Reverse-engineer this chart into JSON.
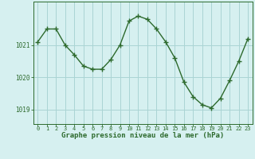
{
  "hours": [
    0,
    1,
    2,
    3,
    4,
    5,
    6,
    7,
    8,
    9,
    10,
    11,
    12,
    13,
    14,
    15,
    16,
    17,
    18,
    19,
    20,
    21,
    22,
    23
  ],
  "pressure": [
    1021.1,
    1021.5,
    1021.5,
    1021.0,
    1020.7,
    1020.35,
    1020.25,
    1020.25,
    1020.55,
    1021.0,
    1021.75,
    1021.9,
    1021.8,
    1021.5,
    1021.1,
    1020.6,
    1019.85,
    1019.4,
    1019.15,
    1019.05,
    1019.35,
    1019.9,
    1020.5,
    1021.2
  ],
  "line_color": "#2d6a2d",
  "marker_color": "#2d6a2d",
  "bg_color": "#d6f0f0",
  "grid_color": "#aad4d4",
  "text_color": "#2d6a2d",
  "ylabel_ticks": [
    1019,
    1020,
    1021
  ],
  "xlabel": "Graphe pression niveau de la mer (hPa)",
  "xlim": [
    -0.5,
    23.5
  ],
  "ylim": [
    1018.55,
    1022.35
  ]
}
